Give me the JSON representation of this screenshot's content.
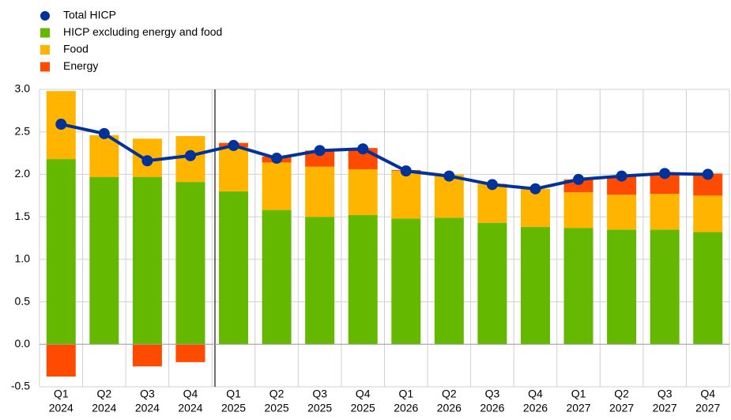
{
  "chart_data": {
    "type": "stacked-bar-line",
    "categories": [
      [
        "Q1",
        "2024"
      ],
      [
        "Q2",
        "2024"
      ],
      [
        "Q3",
        "2024"
      ],
      [
        "Q4",
        "2024"
      ],
      [
        "Q1",
        "2025"
      ],
      [
        "Q2",
        "2025"
      ],
      [
        "Q3",
        "2025"
      ],
      [
        "Q4",
        "2025"
      ],
      [
        "Q1",
        "2026"
      ],
      [
        "Q2",
        "2026"
      ],
      [
        "Q3",
        "2026"
      ],
      [
        "Q4",
        "2026"
      ],
      [
        "Q1",
        "2027"
      ],
      [
        "Q2",
        "2027"
      ],
      [
        "Q3",
        "2027"
      ],
      [
        "Q4",
        "2027"
      ]
    ],
    "series": [
      {
        "name": "Total HICP",
        "color": "#003299",
        "kind": "line",
        "values": [
          2.59,
          2.48,
          2.16,
          2.22,
          2.34,
          2.19,
          2.28,
          2.3,
          2.04,
          1.98,
          1.88,
          1.83,
          1.94,
          1.98,
          2.01,
          2.0
        ]
      },
      {
        "name": "HICP excluding energy and food",
        "color": "#65b800",
        "kind": "bar",
        "values": [
          2.18,
          1.97,
          1.97,
          1.91,
          1.8,
          1.58,
          1.5,
          1.52,
          1.48,
          1.49,
          1.43,
          1.38,
          1.37,
          1.35,
          1.35,
          1.32
        ]
      },
      {
        "name": "Food",
        "color": "#ffb400",
        "kind": "bar",
        "values": [
          0.8,
          0.49,
          0.45,
          0.54,
          0.52,
          0.56,
          0.59,
          0.54,
          0.56,
          0.51,
          0.46,
          0.45,
          0.42,
          0.41,
          0.42,
          0.43
        ]
      },
      {
        "name": "Energy",
        "color": "#ff4b00",
        "kind": "bar",
        "values": [
          -0.38,
          0,
          -0.26,
          -0.21,
          0.05,
          0.07,
          0.19,
          0.25,
          0.01,
          0,
          0,
          0,
          0.15,
          0.22,
          0.24,
          0.26
        ]
      }
    ],
    "ylim": [
      -0.5,
      3.0
    ],
    "yticks": [
      -0.5,
      {
        "value": 0,
        "label": "0.0"
      },
      0.5,
      {
        "value": 1,
        "label": "1.0"
      },
      1.5,
      {
        "value": 2,
        "label": "2.0"
      },
      2.5,
      {
        "value": 3,
        "label": "3.0"
      }
    ],
    "grid": true
  }
}
